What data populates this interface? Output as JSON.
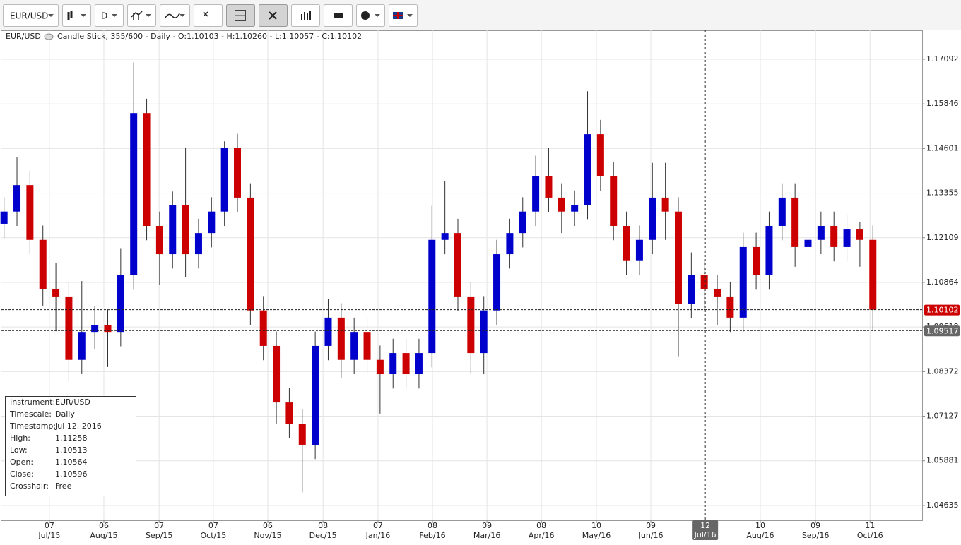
{
  "toolbar": {
    "instrument": "EUR/USD",
    "timeframe": "D"
  },
  "chart_data": {
    "type": "candlestick",
    "instrument": "EUR/USD",
    "legend": "Candle Stick, 355/600 - Daily - O:1.10103 - H:1.10260 - L:1.10057 - C:1.10102",
    "up_color": "#0000cc",
    "down_color": "#cc0000",
    "xlim": [
      0,
      355
    ],
    "ylim": [
      1.0422,
      1.179
    ],
    "grid": true,
    "yticks": [
      1.17092,
      1.15846,
      1.14601,
      1.13355,
      1.12109,
      1.10864,
      1.09618,
      1.08372,
      1.07127,
      1.05881,
      1.04635
    ],
    "xticks": [
      {
        "value": 18.5,
        "day": "07",
        "label": "Jul/15"
      },
      {
        "value": 39.5,
        "day": "06",
        "label": "Aug/15"
      },
      {
        "value": 60.8,
        "day": "07",
        "label": "Sep/15"
      },
      {
        "value": 81.7,
        "day": "07",
        "label": "Oct/15"
      },
      {
        "value": 102.7,
        "day": "06",
        "label": "Nov/15"
      },
      {
        "value": 124,
        "day": "08",
        "label": "Dec/15"
      },
      {
        "value": 145.2,
        "day": "07",
        "label": "Jan/16"
      },
      {
        "value": 166.2,
        "day": "08",
        "label": "Feb/16"
      },
      {
        "value": 187.2,
        "day": "09",
        "label": "Mar/16"
      },
      {
        "value": 208.2,
        "day": "08",
        "label": "Apr/16"
      },
      {
        "value": 229.4,
        "day": "10",
        "label": "May/16"
      },
      {
        "value": 250.4,
        "day": "09",
        "label": "Jun/16"
      },
      {
        "value": 292.6,
        "day": "10",
        "label": "Aug/16"
      },
      {
        "value": 313.9,
        "day": "09",
        "label": "Sep/16"
      },
      {
        "value": 334.9,
        "day": "11",
        "label": "Oct/16"
      }
    ],
    "crosshair": {
      "value": 271.4,
      "day": "12",
      "label": "Jul/16"
    },
    "price_lines": [
      {
        "value": 1.10102,
        "color": "#cc0000"
      },
      {
        "value": 1.09517,
        "color": "#666666"
      }
    ],
    "x": [
      1,
      6,
      11,
      16,
      21,
      26,
      31,
      36,
      41,
      46,
      51,
      56,
      61,
      66,
      71,
      76,
      81,
      86,
      91,
      96,
      101,
      106,
      111,
      116,
      121,
      126,
      131,
      136,
      141,
      146,
      151,
      156,
      161,
      166,
      171,
      176,
      181,
      186,
      191,
      196,
      201,
      206,
      211,
      216,
      221,
      226,
      231,
      236,
      241,
      246,
      251,
      256,
      261,
      266,
      271,
      276,
      281,
      286,
      291,
      296,
      301,
      306,
      311,
      316,
      321,
      326,
      331,
      336
    ],
    "open": [
      1.125,
      1.1284,
      1.1358,
      1.1205,
      1.1067,
      1.1047,
      1.087,
      1.0948,
      1.0968,
      1.0948,
      1.1106,
      1.1559,
      1.1244,
      1.1165,
      1.1303,
      1.1165,
      1.1224,
      1.1284,
      1.1461,
      1.1323,
      1.1008,
      1.0909,
      1.0751,
      1.0692,
      1.0633,
      1.0909,
      1.0988,
      1.087,
      1.0948,
      1.087,
      1.083,
      1.0889,
      1.083,
      1.0889,
      1.1205,
      1.1224,
      1.1047,
      1.0889,
      1.1008,
      1.1165,
      1.1224,
      1.1284,
      1.1382,
      1.1323,
      1.1284,
      1.1303,
      1.15,
      1.1382,
      1.1244,
      1.1146,
      1.1205,
      1.1323,
      1.1284,
      1.1027,
      1.1106,
      1.1067,
      1.1047,
      1.0988,
      1.1185,
      1.1106,
      1.1244,
      1.1323,
      1.1185,
      1.1205,
      1.1244,
      1.1185,
      1.1234,
      1.1205
    ],
    "high": [
      1.1324,
      1.1437,
      1.1398,
      1.1245,
      1.114,
      1.1087,
      1.109,
      1.102,
      1.101,
      1.118,
      1.17,
      1.1599,
      1.1284,
      1.134,
      1.1461,
      1.1264,
      1.1324,
      1.148,
      1.1501,
      1.1363,
      1.1048,
      1.0949,
      1.0791,
      1.0732,
      1.0949,
      1.104,
      1.1028,
      1.0988,
      1.0988,
      1.091,
      1.0929,
      1.0929,
      1.0929,
      1.13,
      1.137,
      1.1264,
      1.1087,
      1.1048,
      1.1205,
      1.1264,
      1.1324,
      1.144,
      1.1461,
      1.1363,
      1.1343,
      1.162,
      1.154,
      1.1422,
      1.1284,
      1.1245,
      1.142,
      1.142,
      1.1324,
      1.117,
      1.1146,
      1.1107,
      1.1087,
      1.1225,
      1.1225,
      1.1284,
      1.1363,
      1.1363,
      1.1245,
      1.1284,
      1.1284,
      1.1274,
      1.1254,
      1.1245
    ],
    "low": [
      1.121,
      1.1244,
      1.1165,
      1.102,
      1.095,
      1.081,
      1.083,
      1.09,
      1.085,
      1.0908,
      1.1066,
      1.1204,
      1.108,
      1.1125,
      1.11,
      1.1125,
      1.1184,
      1.1244,
      1.1283,
      1.0968,
      1.0869,
      1.069,
      1.0652,
      1.05,
      1.0593,
      1.0869,
      1.082,
      1.083,
      1.083,
      1.072,
      1.079,
      1.079,
      1.079,
      1.0849,
      1.1165,
      1.1007,
      1.083,
      1.083,
      1.0968,
      1.1125,
      1.1184,
      1.1244,
      1.1283,
      1.1224,
      1.1244,
      1.1263,
      1.1342,
      1.1204,
      1.1106,
      1.1106,
      1.1165,
      1.1205,
      1.088,
      1.0987,
      1.101,
      1.0968,
      1.0948,
      1.0948,
      1.1066,
      1.1066,
      1.1204,
      1.113,
      1.113,
      1.1165,
      1.1145,
      1.1145,
      1.113,
      1.095
    ],
    "close": [
      1.1284,
      1.1358,
      1.1205,
      1.1067,
      1.1047,
      1.087,
      1.0948,
      1.0968,
      1.0948,
      1.1106,
      1.1559,
      1.1244,
      1.1165,
      1.1303,
      1.1165,
      1.1224,
      1.1284,
      1.1461,
      1.1323,
      1.1008,
      1.0909,
      1.0751,
      1.0692,
      1.0633,
      1.0909,
      1.0988,
      1.087,
      1.0948,
      1.087,
      1.083,
      1.0889,
      1.083,
      1.0889,
      1.1205,
      1.1224,
      1.1047,
      1.0889,
      1.1008,
      1.1165,
      1.1224,
      1.1284,
      1.1382,
      1.1323,
      1.1284,
      1.1303,
      1.15,
      1.1382,
      1.1244,
      1.1146,
      1.1205,
      1.1323,
      1.1284,
      1.1027,
      1.1106,
      1.1067,
      1.1047,
      1.0988,
      1.1185,
      1.1106,
      1.1244,
      1.1323,
      1.1185,
      1.1205,
      1.1244,
      1.1185,
      1.1234,
      1.1205,
      1.101
    ],
    "info_box": [
      [
        "Instrument:",
        "EUR/USD"
      ],
      [
        "Timescale:",
        "Daily"
      ],
      [
        "Timestamp:",
        "Jul 12, 2016"
      ],
      [
        "High:",
        "1.11258"
      ],
      [
        "Low:",
        "1.10513"
      ],
      [
        "Open:",
        "1.10564"
      ],
      [
        "Close:",
        "1.10596"
      ],
      [
        "Crosshair:",
        "Free"
      ]
    ]
  }
}
